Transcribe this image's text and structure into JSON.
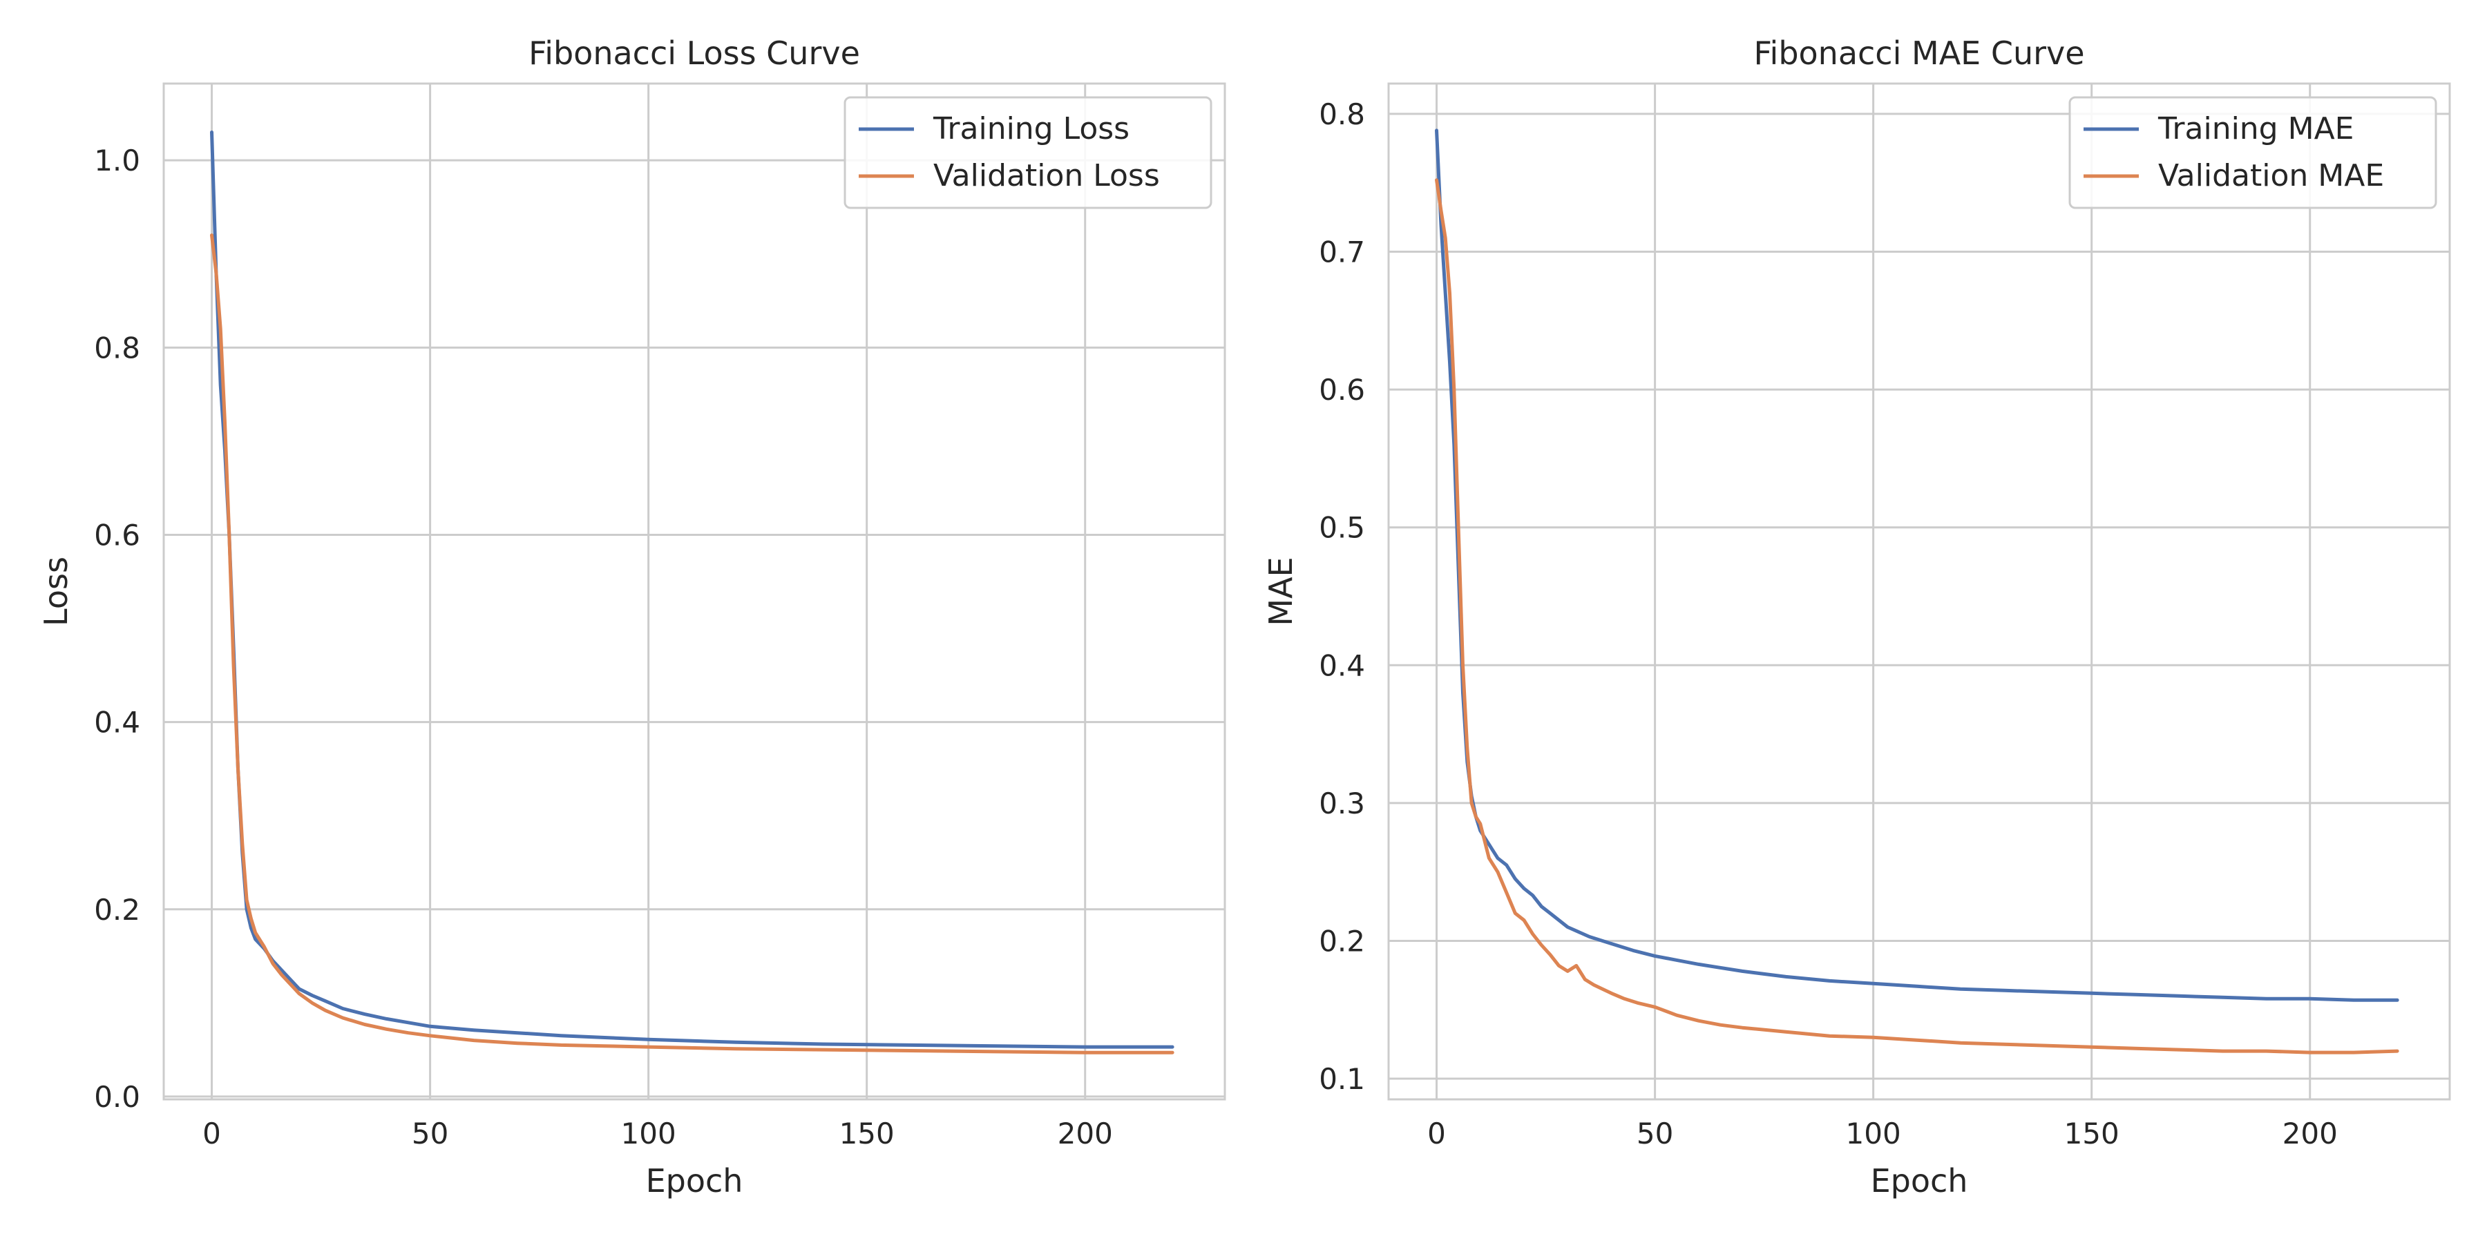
{
  "chart_data": [
    {
      "type": "line",
      "title": "Fibonacci Loss Curve",
      "xlabel": "Epoch",
      "ylabel": "Loss",
      "xlim": [
        -11,
        232
      ],
      "ylim": [
        -0.003,
        1.082
      ],
      "xticks": [
        0,
        50,
        100,
        150,
        200
      ],
      "yticks": [
        0.0,
        0.2,
        0.4,
        0.6,
        0.8,
        1.0
      ],
      "ytick_labels": [
        "0.0",
        "0.2",
        "0.4",
        "0.6",
        "0.8",
        "1.0"
      ],
      "grid": true,
      "legend_position": "upper right",
      "series": [
        {
          "name": "Training Loss",
          "color": "#4c72b0",
          "points": [
            [
              0,
              1.03
            ],
            [
              1,
              0.88
            ],
            [
              2,
              0.76
            ],
            [
              3,
              0.69
            ],
            [
              4,
              0.6
            ],
            [
              5,
              0.48
            ],
            [
              6,
              0.35
            ],
            [
              7,
              0.26
            ],
            [
              8,
              0.2
            ],
            [
              9,
              0.18
            ],
            [
              10,
              0.168
            ],
            [
              12,
              0.158
            ],
            [
              14,
              0.145
            ],
            [
              16,
              0.135
            ],
            [
              18,
              0.125
            ],
            [
              20,
              0.115
            ],
            [
              23,
              0.108
            ],
            [
              26,
              0.102
            ],
            [
              30,
              0.094
            ],
            [
              35,
              0.088
            ],
            [
              40,
              0.083
            ],
            [
              45,
              0.079
            ],
            [
              50,
              0.075
            ],
            [
              60,
              0.071
            ],
            [
              70,
              0.068
            ],
            [
              80,
              0.065
            ],
            [
              90,
              0.063
            ],
            [
              100,
              0.061
            ],
            [
              120,
              0.058
            ],
            [
              140,
              0.056
            ],
            [
              160,
              0.055
            ],
            [
              180,
              0.054
            ],
            [
              200,
              0.053
            ],
            [
              210,
              0.053
            ],
            [
              220,
              0.053
            ]
          ]
        },
        {
          "name": "Validation Loss",
          "color": "#dd8452",
          "points": [
            [
              0,
              0.92
            ],
            [
              1,
              0.88
            ],
            [
              2,
              0.82
            ],
            [
              3,
              0.72
            ],
            [
              4,
              0.6
            ],
            [
              5,
              0.46
            ],
            [
              6,
              0.35
            ],
            [
              7,
              0.27
            ],
            [
              8,
              0.21
            ],
            [
              9,
              0.19
            ],
            [
              10,
              0.175
            ],
            [
              12,
              0.16
            ],
            [
              14,
              0.142
            ],
            [
              16,
              0.13
            ],
            [
              18,
              0.12
            ],
            [
              20,
              0.11
            ],
            [
              23,
              0.1
            ],
            [
              26,
              0.092
            ],
            [
              30,
              0.084
            ],
            [
              35,
              0.077
            ],
            [
              40,
              0.072
            ],
            [
              45,
              0.068
            ],
            [
              50,
              0.065
            ],
            [
              60,
              0.06
            ],
            [
              70,
              0.057
            ],
            [
              80,
              0.055
            ],
            [
              90,
              0.054
            ],
            [
              100,
              0.053
            ],
            [
              120,
              0.051
            ],
            [
              140,
              0.05
            ],
            [
              160,
              0.049
            ],
            [
              180,
              0.048
            ],
            [
              200,
              0.047
            ],
            [
              210,
              0.047
            ],
            [
              220,
              0.047
            ]
          ]
        }
      ]
    },
    {
      "type": "line",
      "title": "Fibonacci MAE Curve",
      "xlabel": "Epoch",
      "ylabel": "MAE",
      "xlim": [
        -11,
        232
      ],
      "ylim": [
        0.085,
        0.822
      ],
      "xticks": [
        0,
        50,
        100,
        150,
        200
      ],
      "yticks": [
        0.1,
        0.2,
        0.3,
        0.4,
        0.5,
        0.6,
        0.7,
        0.8
      ],
      "ytick_labels": [
        "0.1",
        "0.2",
        "0.3",
        "0.4",
        "0.5",
        "0.6",
        "0.7",
        "0.8"
      ],
      "grid": true,
      "legend_position": "upper right",
      "series": [
        {
          "name": "Training MAE",
          "color": "#4c72b0",
          "points": [
            [
              0,
              0.788
            ],
            [
              1,
              0.72
            ],
            [
              2,
              0.67
            ],
            [
              3,
              0.62
            ],
            [
              4,
              0.56
            ],
            [
              5,
              0.47
            ],
            [
              6,
              0.38
            ],
            [
              7,
              0.33
            ],
            [
              8,
              0.305
            ],
            [
              9,
              0.29
            ],
            [
              10,
              0.28
            ],
            [
              12,
              0.27
            ],
            [
              14,
              0.26
            ],
            [
              16,
              0.255
            ],
            [
              18,
              0.245
            ],
            [
              20,
              0.238
            ],
            [
              22,
              0.233
            ],
            [
              24,
              0.225
            ],
            [
              26,
              0.22
            ],
            [
              30,
              0.21
            ],
            [
              35,
              0.203
            ],
            [
              40,
              0.198
            ],
            [
              45,
              0.193
            ],
            [
              50,
              0.189
            ],
            [
              55,
              0.186
            ],
            [
              60,
              0.183
            ],
            [
              70,
              0.178
            ],
            [
              80,
              0.174
            ],
            [
              90,
              0.171
            ],
            [
              100,
              0.169
            ],
            [
              110,
              0.167
            ],
            [
              120,
              0.165
            ],
            [
              130,
              0.164
            ],
            [
              140,
              0.163
            ],
            [
              150,
              0.162
            ],
            [
              160,
              0.161
            ],
            [
              170,
              0.16
            ],
            [
              180,
              0.159
            ],
            [
              190,
              0.158
            ],
            [
              200,
              0.158
            ],
            [
              210,
              0.157
            ],
            [
              220,
              0.157
            ]
          ]
        },
        {
          "name": "Validation MAE",
          "color": "#dd8452",
          "points": [
            [
              0,
              0.752
            ],
            [
              1,
              0.73
            ],
            [
              2,
              0.71
            ],
            [
              3,
              0.67
            ],
            [
              4,
              0.6
            ],
            [
              5,
              0.5
            ],
            [
              6,
              0.4
            ],
            [
              7,
              0.34
            ],
            [
              8,
              0.3
            ],
            [
              9,
              0.29
            ],
            [
              10,
              0.285
            ],
            [
              12,
              0.26
            ],
            [
              14,
              0.25
            ],
            [
              16,
              0.235
            ],
            [
              18,
              0.22
            ],
            [
              20,
              0.215
            ],
            [
              22,
              0.205
            ],
            [
              24,
              0.197
            ],
            [
              26,
              0.19
            ],
            [
              28,
              0.182
            ],
            [
              30,
              0.178
            ],
            [
              32,
              0.182
            ],
            [
              34,
              0.172
            ],
            [
              36,
              0.168
            ],
            [
              38,
              0.165
            ],
            [
              40,
              0.162
            ],
            [
              43,
              0.158
            ],
            [
              46,
              0.155
            ],
            [
              50,
              0.152
            ],
            [
              55,
              0.146
            ],
            [
              60,
              0.142
            ],
            [
              65,
              0.139
            ],
            [
              70,
              0.137
            ],
            [
              80,
              0.134
            ],
            [
              90,
              0.131
            ],
            [
              100,
              0.13
            ],
            [
              110,
              0.128
            ],
            [
              120,
              0.126
            ],
            [
              130,
              0.125
            ],
            [
              140,
              0.124
            ],
            [
              150,
              0.123
            ],
            [
              160,
              0.122
            ],
            [
              170,
              0.121
            ],
            [
              180,
              0.12
            ],
            [
              190,
              0.12
            ],
            [
              200,
              0.119
            ],
            [
              210,
              0.119
            ],
            [
              220,
              0.12
            ]
          ]
        }
      ]
    }
  ]
}
